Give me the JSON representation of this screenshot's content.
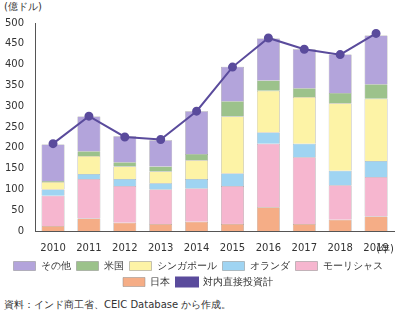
{
  "chart_data": {
    "type": "bar",
    "y_label": "(億ドル)",
    "x_label": "(年)",
    "source": "資料：インド商工省、CEIC Database から作成。",
    "categories": [
      "2010",
      "2011",
      "2012",
      "2013",
      "2014",
      "2015",
      "2016",
      "2017",
      "2018",
      "2019"
    ],
    "stacked": true,
    "grid": false,
    "legend": "bottom",
    "ylim": [
      0,
      500
    ],
    "yticks": [
      0,
      50,
      100,
      150,
      200,
      250,
      300,
      350,
      400,
      450,
      500
    ],
    "series": [
      {
        "name": "その他",
        "color": "#b3a4db",
        "values": [
          88,
          83,
          63,
          63,
          103,
          83,
          101,
          94,
          92,
          117
        ]
      },
      {
        "name": "米国",
        "color": "#9cc28b",
        "values": [
          2,
          12,
          10,
          12,
          15,
          37,
          25,
          21,
          25,
          35
        ]
      },
      {
        "name": "シンガポール",
        "color": "#fdf3a6",
        "values": [
          18,
          43,
          30,
          28,
          45,
          137,
          100,
          112,
          162,
          150
        ]
      },
      {
        "name": "オランダ",
        "color": "#9fd4f2",
        "values": [
          15,
          12,
          17,
          15,
          23,
          30,
          27,
          33,
          35,
          38
        ]
      },
      {
        "name": "モーリシャス",
        "color": "#f6b6cf",
        "values": [
          73,
          95,
          88,
          83,
          80,
          91,
          153,
          160,
          83,
          95
        ]
      },
      {
        "name": "日本",
        "color": "#f5ad86",
        "values": [
          12,
          30,
          20,
          17,
          22,
          17,
          57,
          17,
          27,
          35
        ]
      },
      {
        "name": "対内直接投資計",
        "color": "#5a4b9c",
        "type": "line",
        "marker": "circle",
        "values": [
          210,
          276,
          226,
          220,
          288,
          394,
          464,
          437,
          424,
          475
        ]
      }
    ]
  }
}
